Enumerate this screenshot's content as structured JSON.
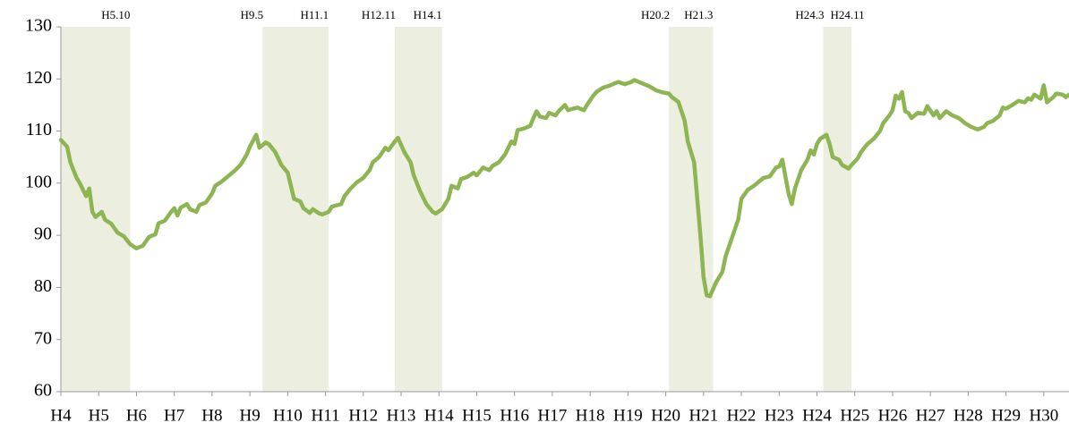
{
  "chart_data": {
    "type": "line",
    "x": [
      0,
      2,
      3,
      5,
      6,
      8,
      9,
      10,
      11,
      13,
      14,
      16,
      18,
      20,
      22,
      24,
      26,
      28,
      30,
      31,
      33,
      35,
      36,
      37,
      38,
      40,
      41,
      43,
      44,
      46,
      48,
      49,
      51,
      53,
      55,
      57,
      59,
      60,
      62,
      63,
      65,
      66,
      68,
      70,
      72,
      74,
      76,
      77,
      79,
      80,
      82,
      83,
      85,
      86,
      89,
      90,
      92,
      94,
      96,
      98,
      99,
      101,
      103,
      104,
      106,
      107,
      109,
      111,
      112,
      114,
      116,
      118,
      119,
      121,
      123,
      124,
      126,
      127,
      129,
      131,
      132,
      134,
      136,
      137,
      139,
      141,
      143,
      144,
      145,
      147,
      149,
      150,
      151,
      152,
      154,
      155,
      157,
      158,
      160,
      161,
      162,
      164,
      166,
      167,
      169,
      170,
      172,
      174,
      176,
      177,
      179,
      181,
      182,
      184,
      186,
      187,
      189,
      191,
      193,
      194,
      196,
      198,
      199,
      201,
      202,
      203,
      204,
      205,
      206,
      208,
      210,
      211,
      213,
      215,
      216,
      218,
      220,
      222,
      223,
      225,
      227,
      228,
      229,
      231,
      232,
      233,
      235,
      237,
      238,
      239,
      240,
      241,
      243,
      244,
      245,
      247,
      248,
      250,
      251,
      253,
      254,
      256,
      258,
      260,
      261,
      263,
      264,
      265,
      266,
      267,
      268,
      269,
      270,
      272,
      274,
      275,
      277,
      278,
      279,
      281,
      283,
      285,
      286,
      287,
      289,
      291,
      293,
      294,
      296,
      298,
      299,
      300,
      302,
      304,
      306,
      307,
      308,
      309,
      311,
      312,
      313,
      315,
      316,
      318,
      319,
      320
    ],
    "series": [
      {
        "color": "#8db552",
        "values": [
          108.3,
          107,
          104,
          101,
          100,
          97.5,
          99,
          94.5,
          93.5,
          94.5,
          93,
          92.2,
          90.5,
          89.8,
          88.3,
          87.5,
          88,
          89.7,
          90.2,
          92.3,
          92.8,
          94.5,
          95.2,
          93.8,
          95.3,
          96,
          95,
          94.5,
          95.8,
          96.3,
          98,
          99.5,
          100.3,
          101.3,
          102.3,
          103.5,
          105.5,
          107,
          109.3,
          106.8,
          107.8,
          107.5,
          106,
          103.5,
          102,
          97,
          96.5,
          95.2,
          94.3,
          95,
          94.2,
          94,
          94.5,
          95.5,
          96,
          97.5,
          99,
          100.2,
          101,
          102.5,
          104,
          105,
          106.8,
          106.3,
          108,
          108.7,
          106,
          104,
          101.5,
          98.5,
          96,
          94.5,
          94.2,
          95,
          97,
          99.5,
          99,
          100.8,
          101.2,
          102,
          101.5,
          103,
          102.5,
          103.3,
          104,
          105.5,
          108,
          107.5,
          110.2,
          110.5,
          111,
          112.5,
          113.8,
          112.8,
          112.5,
          113.5,
          113,
          113.8,
          115,
          114,
          114.2,
          114.5,
          114,
          115,
          116.8,
          117.5,
          118.3,
          118.7,
          119.2,
          119.4,
          119,
          119.4,
          119.8,
          119.3,
          118.8,
          118.5,
          117.8,
          117.4,
          117.2,
          116.5,
          115.6,
          112,
          108,
          104,
          97,
          90,
          82,
          78.5,
          78.3,
          81,
          83,
          86,
          89.5,
          93,
          97,
          98.7,
          99.5,
          100.5,
          101,
          101.3,
          103,
          103.2,
          104.5,
          98,
          96,
          99,
          102.5,
          104.5,
          106.3,
          105.5,
          107.5,
          108.5,
          109.3,
          107.5,
          105,
          104.5,
          103.5,
          102.8,
          103.5,
          104.8,
          106,
          107.5,
          108.5,
          110,
          111.5,
          113,
          114,
          116.8,
          116.2,
          117.5,
          113.8,
          113.5,
          112.5,
          113.5,
          113.3,
          114.8,
          113,
          113.8,
          112.5,
          113.8,
          113,
          112.5,
          112,
          111.5,
          110.8,
          110.3,
          110.8,
          111.5,
          112,
          113,
          114.5,
          114.3,
          115,
          115.8,
          115.5,
          116.3,
          116,
          117,
          116.2,
          118.8,
          115.5,
          116.5,
          117.2,
          117,
          116.5,
          117
        ]
      }
    ],
    "xlim": [
      0,
      320
    ],
    "xticks": [
      {
        "value": 0,
        "label": "H4"
      },
      {
        "value": 12,
        "label": "H5"
      },
      {
        "value": 24,
        "label": "H6"
      },
      {
        "value": 36,
        "label": "H7"
      },
      {
        "value": 48,
        "label": "H8"
      },
      {
        "value": 60,
        "label": "H9"
      },
      {
        "value": 72,
        "label": "H10"
      },
      {
        "value": 84,
        "label": "H11"
      },
      {
        "value": 96,
        "label": "H12"
      },
      {
        "value": 108,
        "label": "H13"
      },
      {
        "value": 120,
        "label": "H14"
      },
      {
        "value": 132,
        "label": "H15"
      },
      {
        "value": 144,
        "label": "H16"
      },
      {
        "value": 156,
        "label": "H17"
      },
      {
        "value": 168,
        "label": "H18"
      },
      {
        "value": 180,
        "label": "H19"
      },
      {
        "value": 192,
        "label": "H20"
      },
      {
        "value": 204,
        "label": "H21"
      },
      {
        "value": 216,
        "label": "H22"
      },
      {
        "value": 228,
        "label": "H23"
      },
      {
        "value": 240,
        "label": "H24"
      },
      {
        "value": 252,
        "label": "H25"
      },
      {
        "value": 264,
        "label": "H26"
      },
      {
        "value": 276,
        "label": "H27"
      },
      {
        "value": 288,
        "label": "H28"
      },
      {
        "value": 300,
        "label": "H29"
      },
      {
        "value": 312,
        "label": "H30"
      }
    ],
    "ylim": [
      60,
      130
    ],
    "yticks": [
      60,
      70,
      80,
      90,
      100,
      110,
      120,
      130
    ],
    "grid": false,
    "shade_color": "#ecefdf",
    "shaded_periods": [
      {
        "from": 0,
        "to": 22,
        "end_label": "H5.10"
      },
      {
        "from": 64,
        "to": 85,
        "start_label": "H9.5",
        "end_label": "H11.1"
      },
      {
        "from": 106,
        "to": 121,
        "start_label": "H12.11",
        "end_label": "H14.1"
      },
      {
        "from": 193,
        "to": 207,
        "start_label": "H20.2",
        "end_label": "H21.3"
      },
      {
        "from": 242,
        "to": 251,
        "start_label": "H24.3",
        "end_label": "H24.11"
      }
    ]
  }
}
